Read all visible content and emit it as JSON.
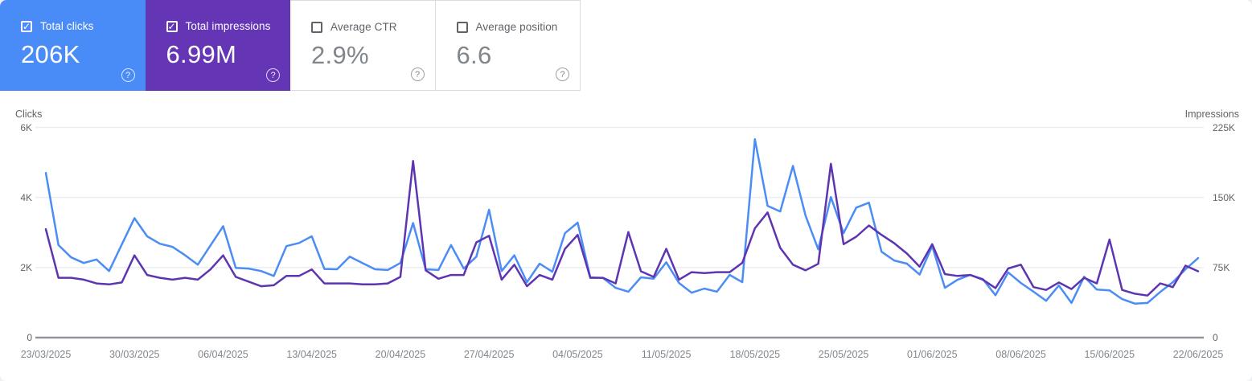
{
  "icons": {
    "checkbox_checked": "✓",
    "help": "?"
  },
  "colors": {
    "clicks_accent": "#4a8cf7",
    "impressions_accent": "#6435b4",
    "clicks_line": "#4c8df5",
    "impressions_line": "#5e35b1",
    "gridline": "#ecedef",
    "axis_line": "#8f959b"
  },
  "cards": [
    {
      "label": "Total clicks",
      "value": "206K",
      "selected": true
    },
    {
      "label": "Total impressions",
      "value": "6.99M",
      "selected": true
    },
    {
      "label": "Average CTR",
      "value": "2.9%",
      "selected": false
    },
    {
      "label": "Average position",
      "value": "6.6",
      "selected": false
    }
  ],
  "chart_data": {
    "type": "line",
    "frequency": "daily",
    "x_tick_labels": [
      "23/03/2025",
      "30/03/2025",
      "06/04/2025",
      "13/04/2025",
      "20/04/2025",
      "27/04/2025",
      "04/05/2025",
      "11/05/2025",
      "18/05/2025",
      "25/05/2025",
      "01/06/2025",
      "08/06/2025",
      "15/06/2025",
      "22/06/2025"
    ],
    "left_axis": {
      "label": "Clicks",
      "tick_labels": [
        "6K",
        "4K",
        "2K",
        "0"
      ],
      "tick_values": [
        6000,
        4000,
        2000,
        0
      ],
      "range": [
        0,
        6000
      ]
    },
    "right_axis": {
      "label": "Impressions",
      "tick_labels": [
        "225K",
        "150K",
        "75K",
        "0"
      ],
      "tick_values": [
        225000,
        150000,
        75000,
        0
      ],
      "range": [
        0,
        225000
      ]
    },
    "legend_position": "none",
    "grid": true,
    "series": [
      {
        "name": "Total clicks",
        "axis": "left",
        "color": "#4c8df5",
        "values": [
          4700,
          2640,
          2290,
          2130,
          2230,
          1900,
          2660,
          3410,
          2890,
          2680,
          2590,
          2350,
          2080,
          2630,
          3180,
          1990,
          1970,
          1900,
          1760,
          2610,
          2700,
          2890,
          1960,
          1950,
          2310,
          2130,
          1950,
          1930,
          2130,
          3270,
          1950,
          1930,
          2640,
          1970,
          2310,
          3650,
          1900,
          2350,
          1580,
          2110,
          1880,
          2980,
          3280,
          1720,
          1700,
          1420,
          1310,
          1720,
          1680,
          2150,
          1560,
          1280,
          1400,
          1310,
          1790,
          1580,
          5660,
          3760,
          3600,
          4900,
          3480,
          2520,
          4010,
          2980,
          3710,
          3850,
          2450,
          2200,
          2110,
          1800,
          2610,
          1420,
          1650,
          1790,
          1670,
          1210,
          1860,
          1560,
          1310,
          1050,
          1490,
          990,
          1740,
          1370,
          1350,
          1100,
          970,
          990,
          1300,
          1580,
          1950,
          2270
        ]
      },
      {
        "name": "Total impressions",
        "axis": "right",
        "color": "#5e35b1",
        "values": [
          116000,
          64000,
          64000,
          62000,
          58000,
          57000,
          59000,
          88000,
          67000,
          64000,
          62000,
          64000,
          62000,
          73000,
          88000,
          65000,
          60000,
          55000,
          56000,
          66000,
          66000,
          73000,
          58000,
          58000,
          58000,
          57000,
          57000,
          58000,
          65000,
          189000,
          72000,
          63000,
          67000,
          67000,
          102000,
          109000,
          62000,
          78000,
          55000,
          67000,
          62000,
          95000,
          110000,
          64000,
          64000,
          58000,
          113000,
          71000,
          65000,
          95000,
          62000,
          70000,
          69000,
          70000,
          70000,
          80000,
          117000,
          134000,
          96000,
          78000,
          72000,
          79000,
          186000,
          100000,
          108000,
          120000,
          110000,
          101000,
          90000,
          76000,
          100000,
          68000,
          66000,
          67000,
          62000,
          53000,
          74000,
          78000,
          54000,
          51000,
          59000,
          52000,
          64000,
          58000,
          105000,
          51000,
          47000,
          45000,
          58000,
          54000,
          77000,
          71000
        ]
      }
    ]
  }
}
